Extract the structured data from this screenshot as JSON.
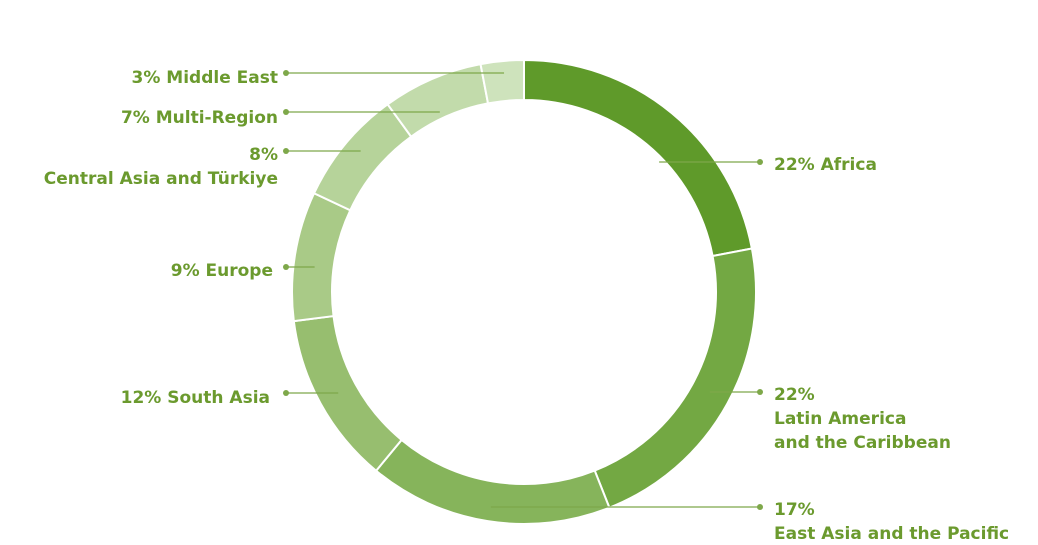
{
  "colors": {
    "label": "#6b9a2e",
    "leader": "#7ea84a",
    "segment_border": "#ffffff",
    "slices": [
      "#5f9a2a",
      "#73a843",
      "#86b45b",
      "#97be6f",
      "#a9ca87",
      "#b6d39a",
      "#c2dbab",
      "#cee3bc",
      "#dbe9cf"
    ]
  },
  "chart_data": {
    "type": "pie",
    "variant": "donut",
    "start_angle_deg": 0,
    "direction": "clockwise",
    "slices": [
      {
        "name": "Africa",
        "value": 22,
        "label_lines": [
          "22% Africa"
        ],
        "side": "right"
      },
      {
        "name": "Latin America and the Caribbean",
        "value": 22,
        "label_lines": [
          "22%",
          "Latin America",
          "and the Caribbean"
        ],
        "side": "right"
      },
      {
        "name": "East Asia and the Pacific",
        "value": 17,
        "label_lines": [
          "17%",
          "East Asia and the Pacific"
        ],
        "side": "right"
      },
      {
        "name": "South Asia",
        "value": 12,
        "label_lines": [
          "12% South Asia"
        ],
        "side": "left"
      },
      {
        "name": "Europe",
        "value": 9,
        "label_lines": [
          "9% Europe"
        ],
        "side": "left"
      },
      {
        "name": "Central Asia and Türkiye",
        "value": 8,
        "label_lines": [
          "8%",
          "Central Asia and Türkiye"
        ],
        "side": "left"
      },
      {
        "name": "Multi-Region",
        "value": 7,
        "label_lines": [
          "7% Multi-Region"
        ],
        "side": "left"
      },
      {
        "name": "Middle East",
        "value": 3,
        "label_lines": [
          "3% Middle East"
        ],
        "side": "left"
      }
    ]
  }
}
